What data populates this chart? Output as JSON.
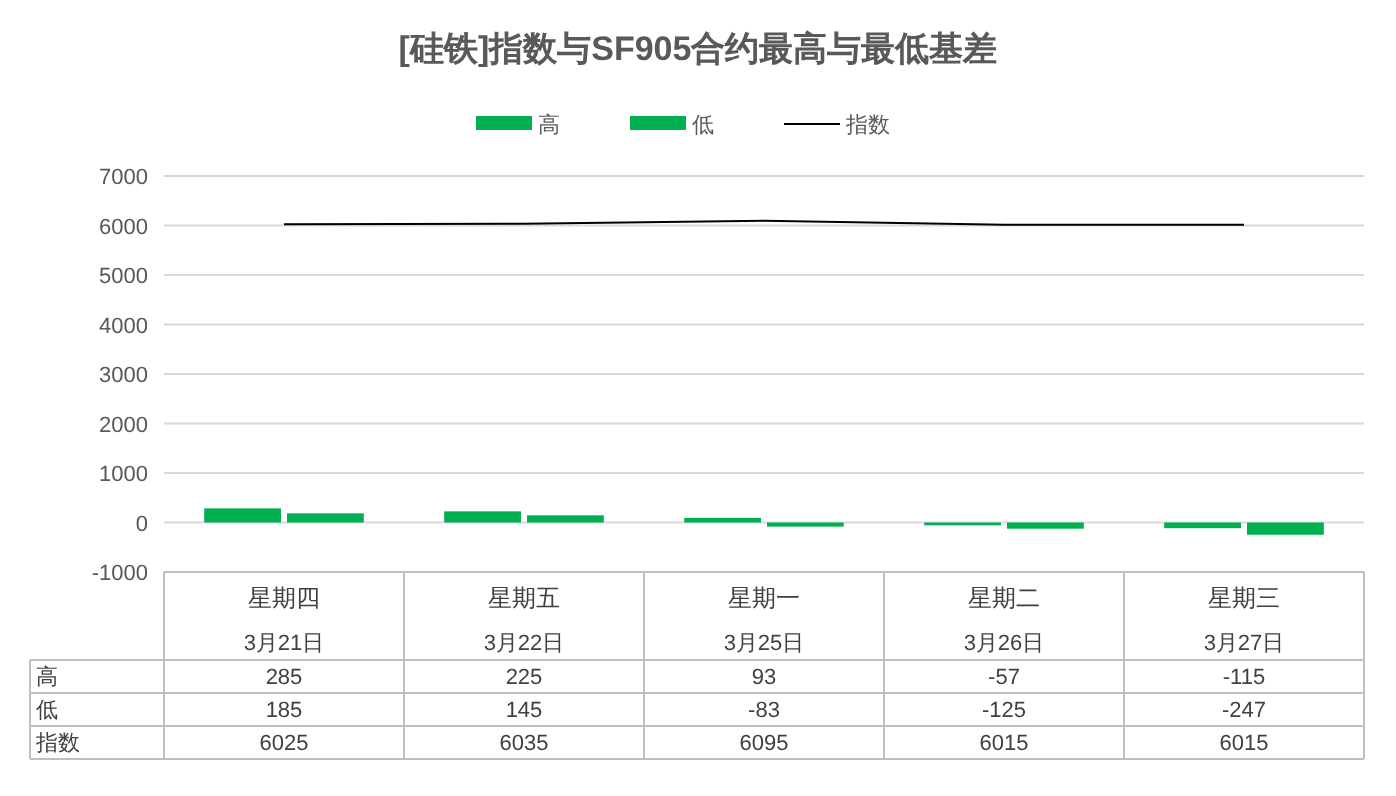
{
  "chart_data": {
    "type": "bar",
    "title": "[硅铁]指数与SF905合约最高与最低基差",
    "categories": [
      "星期四\n3月21日",
      "星期五\n3月22日",
      "星期一\n3月25日",
      "星期二\n3月26日",
      "星期三\n3月27日"
    ],
    "series": [
      {
        "name": "高",
        "color": "#00b050",
        "values": [
          285,
          225,
          93,
          -57,
          -115
        ]
      },
      {
        "name": "低",
        "color": "#00b050",
        "values": [
          185,
          145,
          -83,
          -125,
          -247
        ]
      },
      {
        "name": "指数",
        "type": "line",
        "color": "#000000",
        "values": [
          6025,
          6035,
          6095,
          6015,
          6015
        ]
      }
    ],
    "ylim": [
      -1000,
      7000
    ],
    "yticks": [
      -1000,
      0,
      1000,
      2000,
      3000,
      4000,
      5000,
      6000,
      7000
    ],
    "grid": "y",
    "legend": "top",
    "data_labels": true
  }
}
